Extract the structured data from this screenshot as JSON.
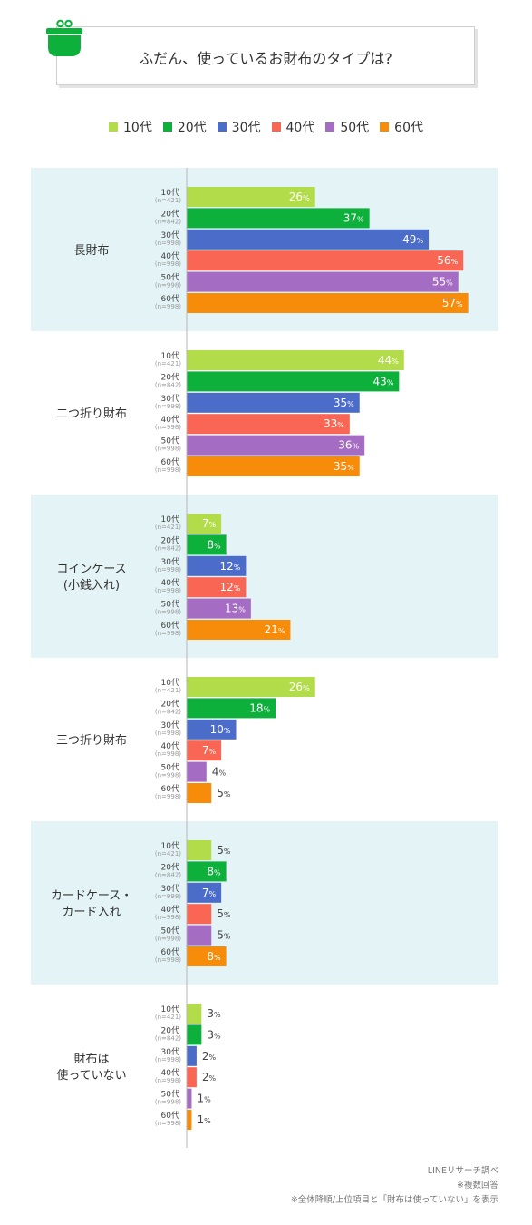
{
  "title": "ふだん、使っているお財布のタイプは?",
  "colors": {
    "panel_bg": "#e4f3f6",
    "axis": "#b5b5b5",
    "series": [
      "#b3dc4a",
      "#0cb03b",
      "#4b6cc8",
      "#f96754",
      "#a56cc4",
      "#f78c0b"
    ]
  },
  "icons": {
    "title": "coin-purse-icon"
  },
  "legend": [
    "10代",
    "20代",
    "30代",
    "40代",
    "50代",
    "60代"
  ],
  "chart_data": {
    "type": "bar",
    "orientation": "horizontal",
    "unit": "%",
    "xlim": [
      0,
      60
    ],
    "categories": [
      {
        "label": [
          "長財布"
        ],
        "values": [
          26,
          37,
          49,
          56,
          55,
          57
        ]
      },
      {
        "label": [
          "二つ折り財布"
        ],
        "values": [
          44,
          43,
          35,
          33,
          36,
          35
        ]
      },
      {
        "label": [
          "コインケース",
          "(小銭入れ)"
        ],
        "values": [
          7,
          8,
          12,
          12,
          13,
          21
        ]
      },
      {
        "label": [
          "三つ折り財布"
        ],
        "values": [
          26,
          18,
          10,
          7,
          4,
          5
        ]
      },
      {
        "label": [
          "カードケース・",
          "カード入れ"
        ],
        "values": [
          5,
          8,
          7,
          5,
          5,
          8
        ]
      },
      {
        "label": [
          "財布は",
          "使っていない"
        ],
        "values": [
          3,
          3,
          2,
          2,
          1,
          1
        ]
      }
    ],
    "series": [
      {
        "name": "10代",
        "n": "(n=421)"
      },
      {
        "name": "20代",
        "n": "(n=842)"
      },
      {
        "name": "30代",
        "n": "(n=998)"
      },
      {
        "name": "40代",
        "n": "(n=998)"
      },
      {
        "name": "50代",
        "n": "(n=998)"
      },
      {
        "name": "60代",
        "n": "(n=998)"
      }
    ]
  },
  "footer": {
    "source": "LINEリサーチ調べ",
    "note1": "※複数回答",
    "note2": "※全体降順/上位項目と「財布は使っていない」を表示"
  }
}
